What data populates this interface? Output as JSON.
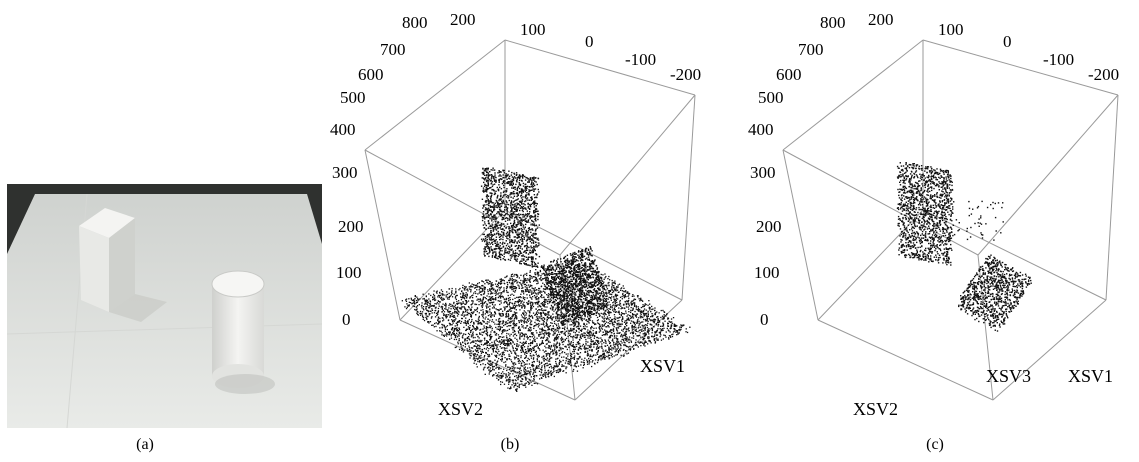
{
  "captions": {
    "a": "(a)",
    "b": "(b)",
    "c": "(c)"
  },
  "photo": {
    "objects": [
      "rectangular-block",
      "cylinder"
    ],
    "colors": {
      "background": "#2f312f",
      "floor": "#e7e9e6",
      "object": "#efefec"
    }
  },
  "plot_b": {
    "z_ticks": [
      "0",
      "100",
      "200",
      "300"
    ],
    "y_ticks": [
      "400",
      "500",
      "600",
      "700",
      "800"
    ],
    "x_ticks": [
      "200",
      "100",
      "0",
      "-100",
      "-200"
    ],
    "axis_labels": {
      "front": "XSV2",
      "right": "XSV1"
    }
  },
  "plot_c": {
    "z_ticks": [
      "0",
      "100",
      "200",
      "300"
    ],
    "y_ticks": [
      "400",
      "500",
      "600",
      "700",
      "800"
    ],
    "x_ticks": [
      "200",
      "100",
      "0",
      "-100",
      "-200"
    ],
    "axis_labels": {
      "front": "XSV2",
      "middle": "XSV3",
      "right": "XSV1"
    }
  }
}
